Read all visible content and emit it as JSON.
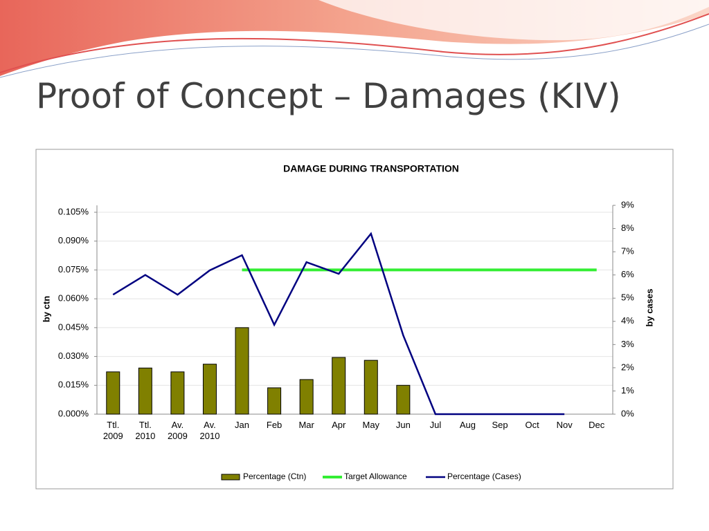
{
  "title": "Proof of Concept – Damages (KIV)",
  "chart_data": {
    "type": "bar",
    "title": "DAMAGE DURING TRANSPORTATION",
    "ylabel": "by ctn",
    "y2label": "by cases",
    "categories": [
      "Ttl. 2009",
      "Ttl. 2010",
      "Av. 2009",
      "Av. 2010",
      "Jan",
      "Feb",
      "Mar",
      "Apr",
      "May",
      "Jun",
      "Jul",
      "Aug",
      "Sep",
      "Oct",
      "Nov",
      "Dec"
    ],
    "series": [
      {
        "name": "Percentage (Ctn)",
        "type": "bar",
        "color": "#808000",
        "values": [
          0.022,
          0.024,
          0.022,
          0.026,
          0.045,
          0.0137,
          0.018,
          0.0295,
          0.028,
          0.015,
          null,
          null,
          null,
          null,
          null,
          null
        ]
      },
      {
        "name": "Target Allowance",
        "type": "line",
        "color": "#33ee33",
        "values": [
          null,
          null,
          null,
          null,
          0.075,
          0.075,
          0.075,
          0.075,
          0.075,
          0.075,
          0.075,
          0.075,
          0.075,
          0.075,
          0.075,
          0.075
        ]
      },
      {
        "name": "Percentage (Cases)",
        "type": "line",
        "axis": "y2",
        "color": "#000080",
        "values": [
          5.15,
          6.0,
          5.15,
          6.2,
          6.85,
          3.85,
          6.55,
          6.05,
          7.78,
          3.4,
          0,
          0,
          0,
          0,
          0,
          null
        ]
      }
    ],
    "ylim": [
      0,
      0.1086
    ],
    "yticks": [
      {
        "value": 0,
        "label": "0.000%"
      },
      {
        "value": 0.015,
        "label": "0.015%"
      },
      {
        "value": 0.03,
        "label": "0.030%"
      },
      {
        "value": 0.045,
        "label": "0.045%"
      },
      {
        "value": 0.06,
        "label": "0.060%"
      },
      {
        "value": 0.075,
        "label": "0.075%"
      },
      {
        "value": 0.09,
        "label": "0.090%"
      },
      {
        "value": 0.105,
        "label": "0.105%"
      }
    ],
    "y2lim": [
      0,
      9
    ],
    "y2ticks": [
      {
        "value": 0,
        "label": "0%"
      },
      {
        "value": 1,
        "label": "1%"
      },
      {
        "value": 2,
        "label": "2%"
      },
      {
        "value": 3,
        "label": "3%"
      },
      {
        "value": 4,
        "label": "4%"
      },
      {
        "value": 5,
        "label": "5%"
      },
      {
        "value": 6,
        "label": "6%"
      },
      {
        "value": 7,
        "label": "7%"
      },
      {
        "value": 8,
        "label": "8%"
      },
      {
        "value": 9,
        "label": "9%"
      }
    ],
    "grid": true,
    "legend": "bottom"
  }
}
